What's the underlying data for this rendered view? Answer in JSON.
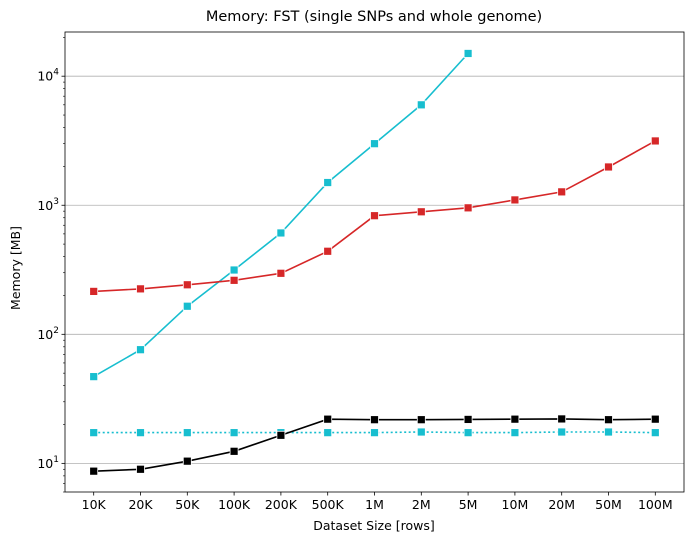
{
  "chart_data": {
    "type": "line",
    "title": "Memory:  FST (single SNPs and whole genome)",
    "xlabel": "Dataset Size  [rows]",
    "ylabel": "Memory  [MB]",
    "y_scale": "log",
    "ylim": [
      6,
      22000
    ],
    "y_ticks": [
      10,
      100,
      1000,
      10000
    ],
    "grid": "horizontal",
    "legend": "none",
    "categories": [
      "10K",
      "20K",
      "50K",
      "100K",
      "200K",
      "500K",
      "1M",
      "2M",
      "5M",
      "10M",
      "20M",
      "50M",
      "100M"
    ],
    "series": [
      {
        "color": "#17becf",
        "linestyle": "solid",
        "marker": "square",
        "values": [
          47,
          76,
          165,
          315,
          610,
          1500,
          3000,
          6000,
          15000,
          null,
          null,
          null,
          null
        ]
      },
      {
        "color": "#d62728",
        "linestyle": "solid",
        "marker": "square",
        "values": [
          215,
          225,
          242,
          262,
          297,
          440,
          830,
          890,
          955,
          1100,
          1270,
          1980,
          3150
        ]
      },
      {
        "color": "#17becf",
        "linestyle": "dotted",
        "marker": "square",
        "values": [
          17.3,
          17.3,
          17.3,
          17.3,
          17.3,
          17.3,
          17.3,
          17.5,
          17.3,
          17.3,
          17.5,
          17.5,
          17.3
        ]
      },
      {
        "color": "#000000",
        "linestyle": "solid",
        "marker": "square",
        "values": [
          8.7,
          9.0,
          10.4,
          12.4,
          16.5,
          22.0,
          21.8,
          21.8,
          21.9,
          22.0,
          22.1,
          21.8,
          22.0
        ]
      }
    ]
  }
}
